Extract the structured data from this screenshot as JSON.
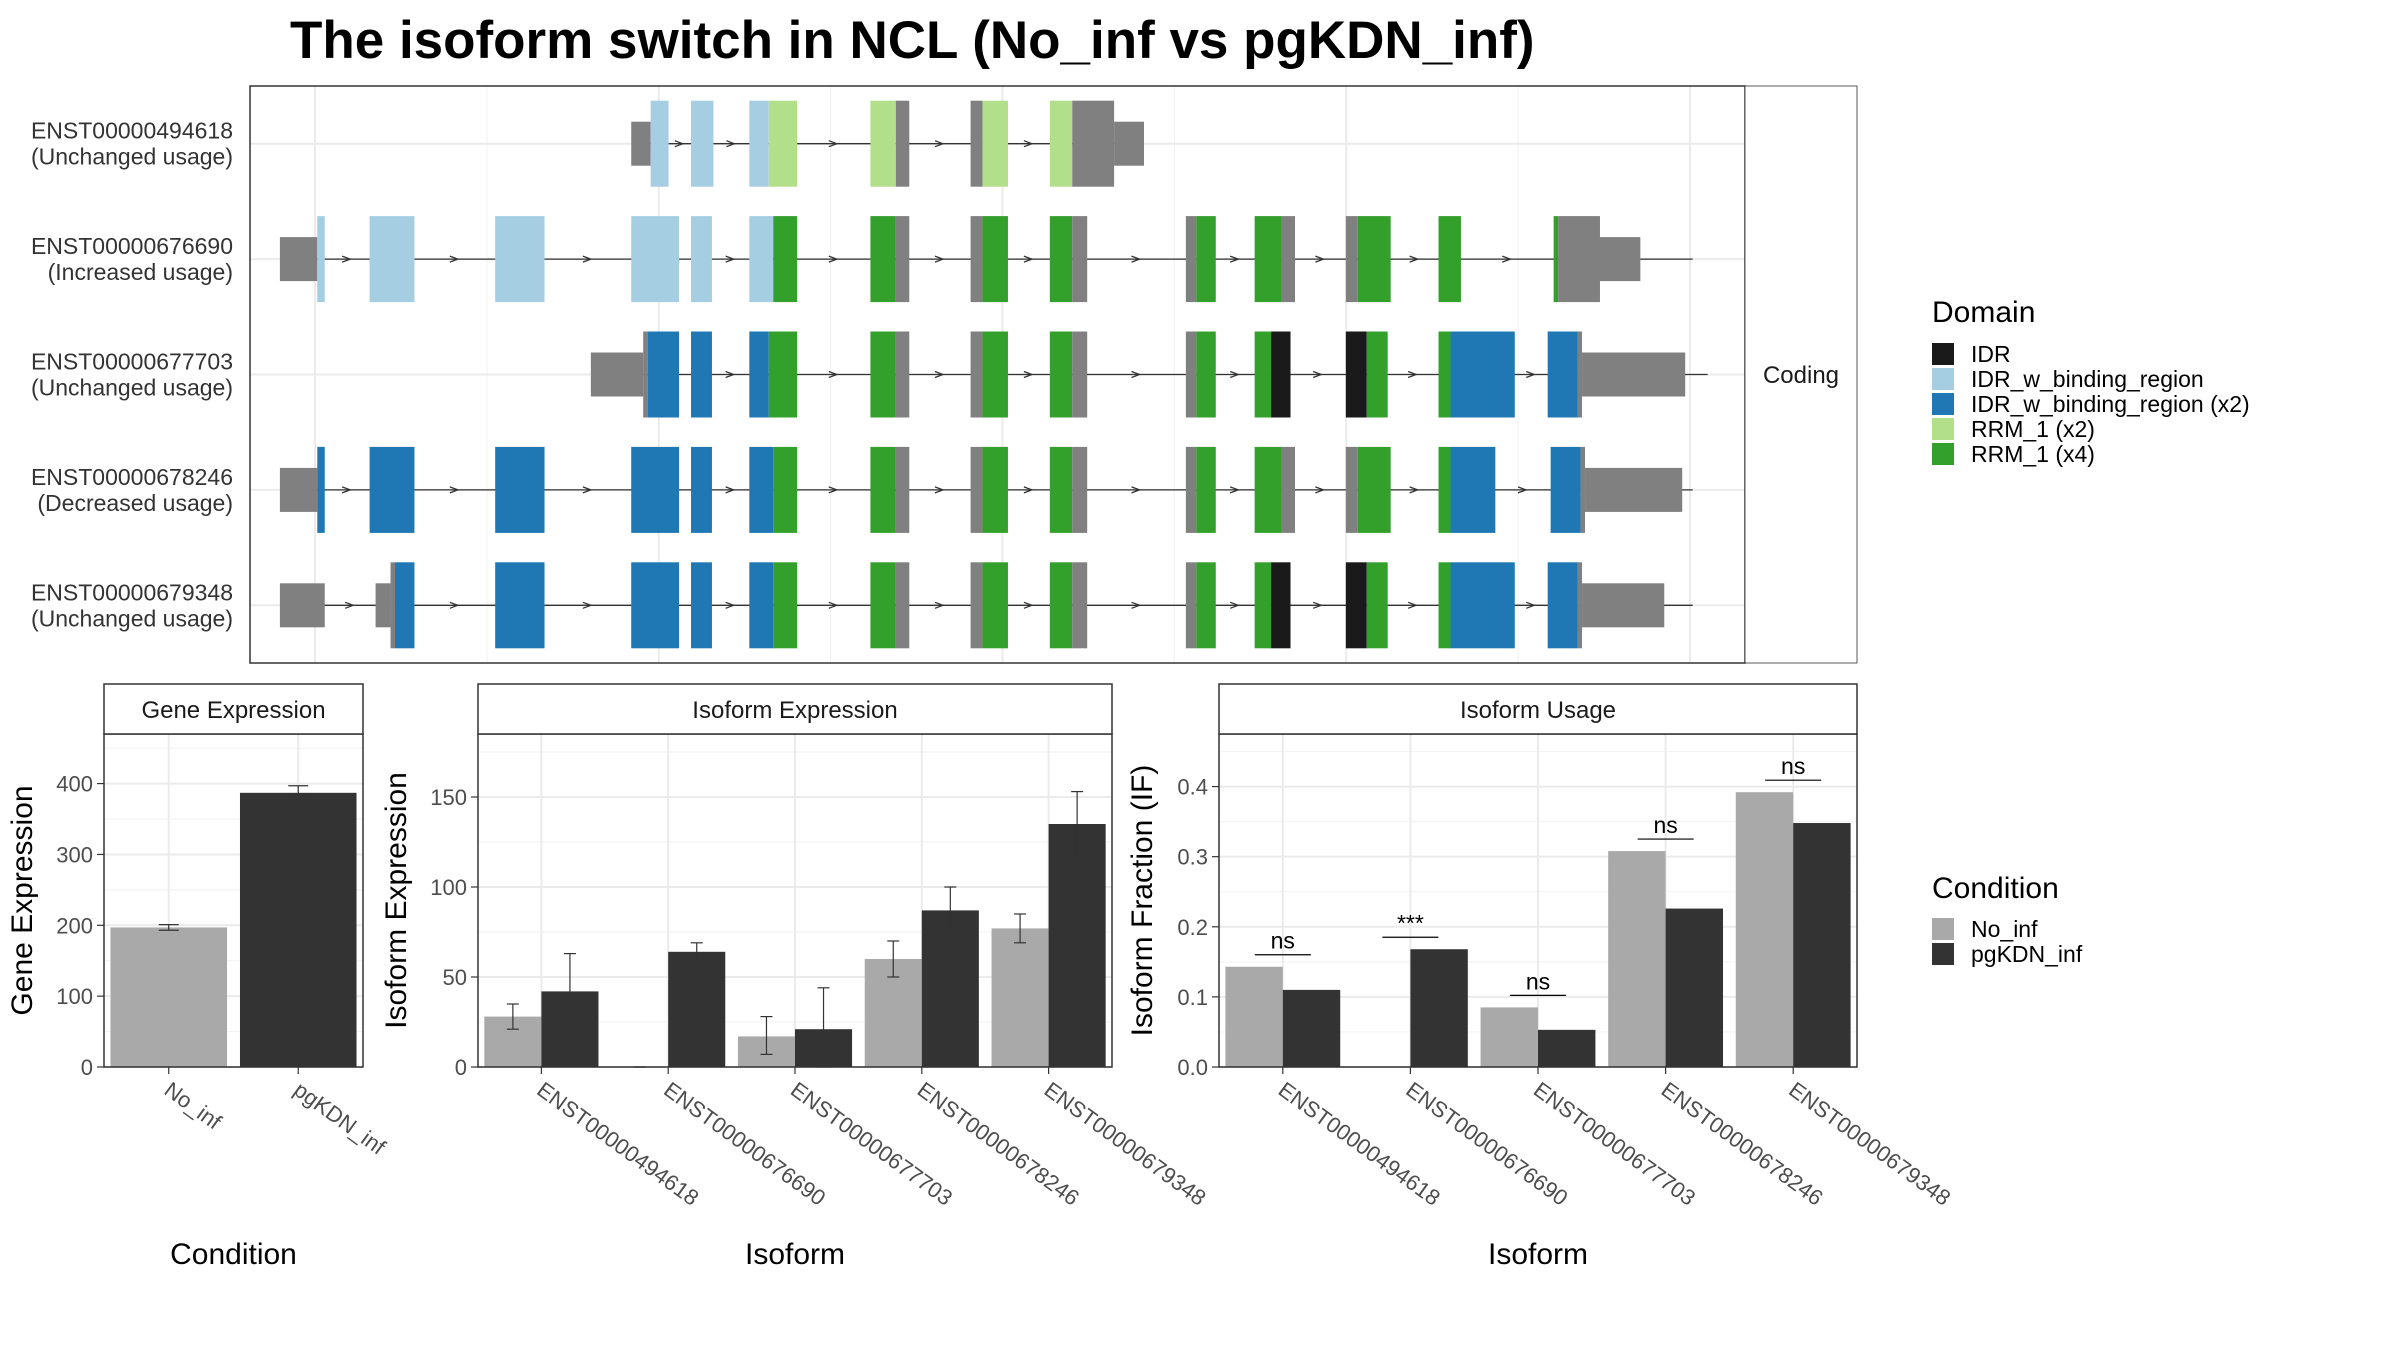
{
  "title": "The isoform switch in NCL (No_inf vs pgKDN_inf)",
  "chart_data": [
    {
      "type": "gene-structure",
      "facet_label": "Coding",
      "x_range": [
        0,
        1000
      ],
      "isoforms": [
        {
          "id": "ENST00000494618",
          "usage": "(Unchanged usage)",
          "intron_start": 260,
          "intron_end": 590,
          "exons": [
            {
              "s": 255,
              "e": 268,
              "kind": "utr"
            },
            {
              "s": 268,
              "e": 280,
              "kind": "domain",
              "domain": "IDR_w_binding_region"
            },
            {
              "s": 295,
              "e": 310,
              "kind": "domain",
              "domain": "IDR_w_binding_region"
            },
            {
              "s": 334,
              "e": 347,
              "kind": "domain",
              "domain": "IDR_w_binding_region"
            },
            {
              "s": 347,
              "e": 366,
              "kind": "domain",
              "domain": "RRM_1 (x2)"
            },
            {
              "s": 415,
              "e": 432,
              "kind": "domain",
              "domain": "RRM_1 (x2)"
            },
            {
              "s": 432,
              "e": 441,
              "kind": "cds"
            },
            {
              "s": 482,
              "e": 490,
              "kind": "cds"
            },
            {
              "s": 490,
              "e": 507,
              "kind": "domain",
              "domain": "RRM_1 (x2)"
            },
            {
              "s": 535,
              "e": 550,
              "kind": "domain",
              "domain": "RRM_1 (x2)"
            },
            {
              "s": 550,
              "e": 578,
              "kind": "cds"
            },
            {
              "s": 578,
              "e": 598,
              "kind": "utr"
            }
          ]
        },
        {
          "id": "ENST00000676690",
          "usage": "(Increased usage)",
          "intron_start": 30,
          "intron_end": 965,
          "exons": [
            {
              "s": 20,
              "e": 45,
              "kind": "utr"
            },
            {
              "s": 45,
              "e": 50,
              "kind": "domain",
              "domain": "IDR_w_binding_region"
            },
            {
              "s": 80,
              "e": 110,
              "kind": "domain",
              "domain": "IDR_w_binding_region"
            },
            {
              "s": 164,
              "e": 197,
              "kind": "domain",
              "domain": "IDR_w_binding_region"
            },
            {
              "s": 255,
              "e": 287,
              "kind": "domain",
              "domain": "IDR_w_binding_region"
            },
            {
              "s": 295,
              "e": 309,
              "kind": "domain",
              "domain": "IDR_w_binding_region"
            },
            {
              "s": 334,
              "e": 350,
              "kind": "domain",
              "domain": "IDR_w_binding_region"
            },
            {
              "s": 350,
              "e": 366,
              "kind": "domain",
              "domain": "RRM_1 (x4)"
            },
            {
              "s": 415,
              "e": 432,
              "kind": "domain",
              "domain": "RRM_1 (x4)"
            },
            {
              "s": 432,
              "e": 441,
              "kind": "cds"
            },
            {
              "s": 482,
              "e": 490,
              "kind": "cds"
            },
            {
              "s": 490,
              "e": 507,
              "kind": "domain",
              "domain": "RRM_1 (x4)"
            },
            {
              "s": 535,
              "e": 550,
              "kind": "domain",
              "domain": "RRM_1 (x4)"
            },
            {
              "s": 550,
              "e": 560,
              "kind": "cds"
            },
            {
              "s": 626,
              "e": 633,
              "kind": "cds"
            },
            {
              "s": 633,
              "e": 646,
              "kind": "domain",
              "domain": "RRM_1 (x4)"
            },
            {
              "s": 672,
              "e": 690,
              "kind": "domain",
              "domain": "RRM_1 (x4)"
            },
            {
              "s": 690,
              "e": 699,
              "kind": "cds"
            },
            {
              "s": 733,
              "e": 741,
              "kind": "cds"
            },
            {
              "s": 741,
              "e": 763,
              "kind": "domain",
              "domain": "RRM_1 (x4)"
            },
            {
              "s": 795,
              "e": 810,
              "kind": "domain",
              "domain": "RRM_1 (x4)"
            },
            {
              "s": 872,
              "e": 875,
              "kind": "domain",
              "domain": "RRM_1 (x4)"
            },
            {
              "s": 875,
              "e": 903,
              "kind": "cds"
            },
            {
              "s": 903,
              "e": 930,
              "kind": "utr"
            }
          ]
        },
        {
          "id": "ENST00000677703",
          "usage": "(Unchanged usage)",
          "intron_start": 255,
          "intron_end": 975,
          "exons": [
            {
              "s": 228,
              "e": 263,
              "kind": "utr"
            },
            {
              "s": 263,
              "e": 266,
              "kind": "cds"
            },
            {
              "s": 266,
              "e": 287,
              "kind": "domain",
              "domain": "IDR_w_binding_region (x2)"
            },
            {
              "s": 295,
              "e": 309,
              "kind": "domain",
              "domain": "IDR_w_binding_region (x2)"
            },
            {
              "s": 334,
              "e": 347,
              "kind": "domain",
              "domain": "IDR_w_binding_region (x2)"
            },
            {
              "s": 347,
              "e": 366,
              "kind": "domain",
              "domain": "RRM_1 (x4)"
            },
            {
              "s": 415,
              "e": 432,
              "kind": "domain",
              "domain": "RRM_1 (x4)"
            },
            {
              "s": 432,
              "e": 441,
              "kind": "cds"
            },
            {
              "s": 482,
              "e": 490,
              "kind": "cds"
            },
            {
              "s": 490,
              "e": 507,
              "kind": "domain",
              "domain": "RRM_1 (x4)"
            },
            {
              "s": 535,
              "e": 550,
              "kind": "domain",
              "domain": "RRM_1 (x4)"
            },
            {
              "s": 550,
              "e": 560,
              "kind": "cds"
            },
            {
              "s": 626,
              "e": 633,
              "kind": "cds"
            },
            {
              "s": 633,
              "e": 646,
              "kind": "domain",
              "domain": "RRM_1 (x4)"
            },
            {
              "s": 672,
              "e": 683,
              "kind": "domain",
              "domain": "RRM_1 (x4)"
            },
            {
              "s": 683,
              "e": 696,
              "kind": "domain",
              "domain": "IDR"
            },
            {
              "s": 733,
              "e": 747,
              "kind": "domain",
              "domain": "IDR"
            },
            {
              "s": 747,
              "e": 761,
              "kind": "domain",
              "domain": "RRM_1 (x4)"
            },
            {
              "s": 795,
              "e": 803,
              "kind": "domain",
              "domain": "RRM_1 (x4)"
            },
            {
              "s": 803,
              "e": 846,
              "kind": "domain",
              "domain": "IDR_w_binding_region (x2)"
            },
            {
              "s": 868,
              "e": 888,
              "kind": "domain",
              "domain": "IDR_w_binding_region (x2)"
            },
            {
              "s": 888,
              "e": 891,
              "kind": "cds"
            },
            {
              "s": 891,
              "e": 960,
              "kind": "utr"
            }
          ]
        },
        {
          "id": "ENST00000678246",
          "usage": "(Decreased usage)",
          "intron_start": 30,
          "intron_end": 965,
          "exons": [
            {
              "s": 20,
              "e": 45,
              "kind": "utr"
            },
            {
              "s": 45,
              "e": 50,
              "kind": "domain",
              "domain": "IDR_w_binding_region (x2)"
            },
            {
              "s": 80,
              "e": 110,
              "kind": "domain",
              "domain": "IDR_w_binding_region (x2)"
            },
            {
              "s": 164,
              "e": 197,
              "kind": "domain",
              "domain": "IDR_w_binding_region (x2)"
            },
            {
              "s": 255,
              "e": 287,
              "kind": "domain",
              "domain": "IDR_w_binding_region (x2)"
            },
            {
              "s": 295,
              "e": 309,
              "kind": "domain",
              "domain": "IDR_w_binding_region (x2)"
            },
            {
              "s": 334,
              "e": 350,
              "kind": "domain",
              "domain": "IDR_w_binding_region (x2)"
            },
            {
              "s": 350,
              "e": 366,
              "kind": "domain",
              "domain": "RRM_1 (x4)"
            },
            {
              "s": 415,
              "e": 432,
              "kind": "domain",
              "domain": "RRM_1 (x4)"
            },
            {
              "s": 432,
              "e": 441,
              "kind": "cds"
            },
            {
              "s": 482,
              "e": 490,
              "kind": "cds"
            },
            {
              "s": 490,
              "e": 507,
              "kind": "domain",
              "domain": "RRM_1 (x4)"
            },
            {
              "s": 535,
              "e": 550,
              "kind": "domain",
              "domain": "RRM_1 (x4)"
            },
            {
              "s": 550,
              "e": 560,
              "kind": "cds"
            },
            {
              "s": 626,
              "e": 633,
              "kind": "cds"
            },
            {
              "s": 633,
              "e": 646,
              "kind": "domain",
              "domain": "RRM_1 (x4)"
            },
            {
              "s": 672,
              "e": 690,
              "kind": "domain",
              "domain": "RRM_1 (x4)"
            },
            {
              "s": 690,
              "e": 699,
              "kind": "cds"
            },
            {
              "s": 733,
              "e": 741,
              "kind": "cds"
            },
            {
              "s": 741,
              "e": 763,
              "kind": "domain",
              "domain": "RRM_1 (x4)"
            },
            {
              "s": 795,
              "e": 803,
              "kind": "domain",
              "domain": "RRM_1 (x4)"
            },
            {
              "s": 803,
              "e": 833,
              "kind": "domain",
              "domain": "IDR_w_binding_region (x2)"
            },
            {
              "s": 870,
              "e": 890,
              "kind": "domain",
              "domain": "IDR_w_binding_region (x2)"
            },
            {
              "s": 890,
              "e": 893,
              "kind": "cds"
            },
            {
              "s": 893,
              "e": 958,
              "kind": "utr"
            }
          ]
        },
        {
          "id": "ENST00000679348",
          "usage": "(Unchanged usage)",
          "intron_start": 30,
          "intron_end": 965,
          "exons": [
            {
              "s": 20,
              "e": 50,
              "kind": "utr"
            },
            {
              "s": 84,
              "e": 94,
              "kind": "utr"
            },
            {
              "s": 94,
              "e": 97,
              "kind": "cds"
            },
            {
              "s": 97,
              "e": 110,
              "kind": "domain",
              "domain": "IDR_w_binding_region (x2)"
            },
            {
              "s": 164,
              "e": 197,
              "kind": "domain",
              "domain": "IDR_w_binding_region (x2)"
            },
            {
              "s": 255,
              "e": 287,
              "kind": "domain",
              "domain": "IDR_w_binding_region (x2)"
            },
            {
              "s": 295,
              "e": 309,
              "kind": "domain",
              "domain": "IDR_w_binding_region (x2)"
            },
            {
              "s": 334,
              "e": 350,
              "kind": "domain",
              "domain": "IDR_w_binding_region (x2)"
            },
            {
              "s": 350,
              "e": 366,
              "kind": "domain",
              "domain": "RRM_1 (x4)"
            },
            {
              "s": 415,
              "e": 432,
              "kind": "domain",
              "domain": "RRM_1 (x4)"
            },
            {
              "s": 432,
              "e": 441,
              "kind": "cds"
            },
            {
              "s": 482,
              "e": 490,
              "kind": "cds"
            },
            {
              "s": 490,
              "e": 507,
              "kind": "domain",
              "domain": "RRM_1 (x4)"
            },
            {
              "s": 535,
              "e": 550,
              "kind": "domain",
              "domain": "RRM_1 (x4)"
            },
            {
              "s": 550,
              "e": 560,
              "kind": "cds"
            },
            {
              "s": 626,
              "e": 633,
              "kind": "cds"
            },
            {
              "s": 633,
              "e": 646,
              "kind": "domain",
              "domain": "RRM_1 (x4)"
            },
            {
              "s": 672,
              "e": 683,
              "kind": "domain",
              "domain": "RRM_1 (x4)"
            },
            {
              "s": 683,
              "e": 696,
              "kind": "domain",
              "domain": "IDR"
            },
            {
              "s": 733,
              "e": 747,
              "kind": "domain",
              "domain": "IDR"
            },
            {
              "s": 747,
              "e": 761,
              "kind": "domain",
              "domain": "RRM_1 (x4)"
            },
            {
              "s": 795,
              "e": 803,
              "kind": "domain",
              "domain": "RRM_1 (x4)"
            },
            {
              "s": 803,
              "e": 846,
              "kind": "domain",
              "domain": "IDR_w_binding_region (x2)"
            },
            {
              "s": 868,
              "e": 888,
              "kind": "domain",
              "domain": "IDR_w_binding_region (x2)"
            },
            {
              "s": 888,
              "e": 891,
              "kind": "cds"
            },
            {
              "s": 891,
              "e": 946,
              "kind": "utr"
            }
          ]
        }
      ],
      "legend": {
        "title": "Domain",
        "items": [
          {
            "label": "IDR",
            "color": "#1a1a1a"
          },
          {
            "label": "IDR_w_binding_region",
            "color": "#a6cee3"
          },
          {
            "label": "IDR_w_binding_region (x2)",
            "color": "#1f78b4"
          },
          {
            "label": "RRM_1 (x2)",
            "color": "#b2df8a"
          },
          {
            "label": "RRM_1 (x4)",
            "color": "#33a02c"
          }
        ]
      },
      "colors": {
        "utr": "#808080",
        "cds": "#808080"
      }
    },
    {
      "type": "bar",
      "strip": "Gene Expression",
      "xlabel": "Condition",
      "ylabel": "Gene Expression",
      "ylim": [
        0,
        470
      ],
      "yticks": [
        0,
        100,
        200,
        300,
        400
      ],
      "categories": [
        "No_inf",
        "pgKDN_inf"
      ],
      "values": [
        197,
        387
      ],
      "errors": [
        [
          193,
          201
        ],
        [
          377,
          397
        ]
      ]
    },
    {
      "type": "bar",
      "strip": "Isoform Expression",
      "xlabel": "Isoform",
      "ylabel": "Isoform Expression",
      "ylim": [
        0,
        185
      ],
      "yticks": [
        0,
        50,
        100,
        150
      ],
      "categories": [
        "ENST00000494618",
        "ENST00000676690",
        "ENST00000677703",
        "ENST00000678246",
        "ENST00000679348"
      ],
      "series": [
        {
          "name": "No_inf",
          "values": [
            28,
            0,
            17,
            60,
            77
          ],
          "errors": [
            [
              21,
              35
            ],
            [
              0,
              0
            ],
            [
              7,
              28
            ],
            [
              50,
              70
            ],
            [
              69,
              85
            ]
          ]
        },
        {
          "name": "pgKDN_inf",
          "values": [
            42,
            64,
            21,
            87,
            135
          ],
          "errors": [
            [
              20,
              63
            ],
            [
              58,
              69
            ],
            [
              0,
              44
            ],
            [
              75,
              100
            ],
            [
              117,
              153
            ]
          ]
        }
      ]
    },
    {
      "type": "bar",
      "strip": "Isoform Usage",
      "xlabel": "Isoform",
      "ylabel": "Isoform Fraction (IF)",
      "ylim": [
        0,
        0.475
      ],
      "yticks": [
        "0.0",
        "0.1",
        "0.2",
        "0.3",
        "0.4"
      ],
      "categories": [
        "ENST00000494618",
        "ENST00000676690",
        "ENST00000677703",
        "ENST00000678246",
        "ENST00000679348"
      ],
      "series": [
        {
          "name": "No_inf",
          "values": [
            0.143,
            0.0,
            0.085,
            0.308,
            0.392
          ]
        },
        {
          "name": "pgKDN_inf",
          "values": [
            0.11,
            0.168,
            0.053,
            0.226,
            0.348
          ]
        }
      ],
      "significance": [
        "ns",
        "***",
        "ns",
        "ns",
        "ns"
      ]
    }
  ],
  "condition_legend": {
    "title": "Condition",
    "items": [
      {
        "label": "No_inf",
        "color": "#a9a9a9"
      },
      {
        "label": "pgKDN_inf",
        "color": "#333333"
      }
    ]
  }
}
